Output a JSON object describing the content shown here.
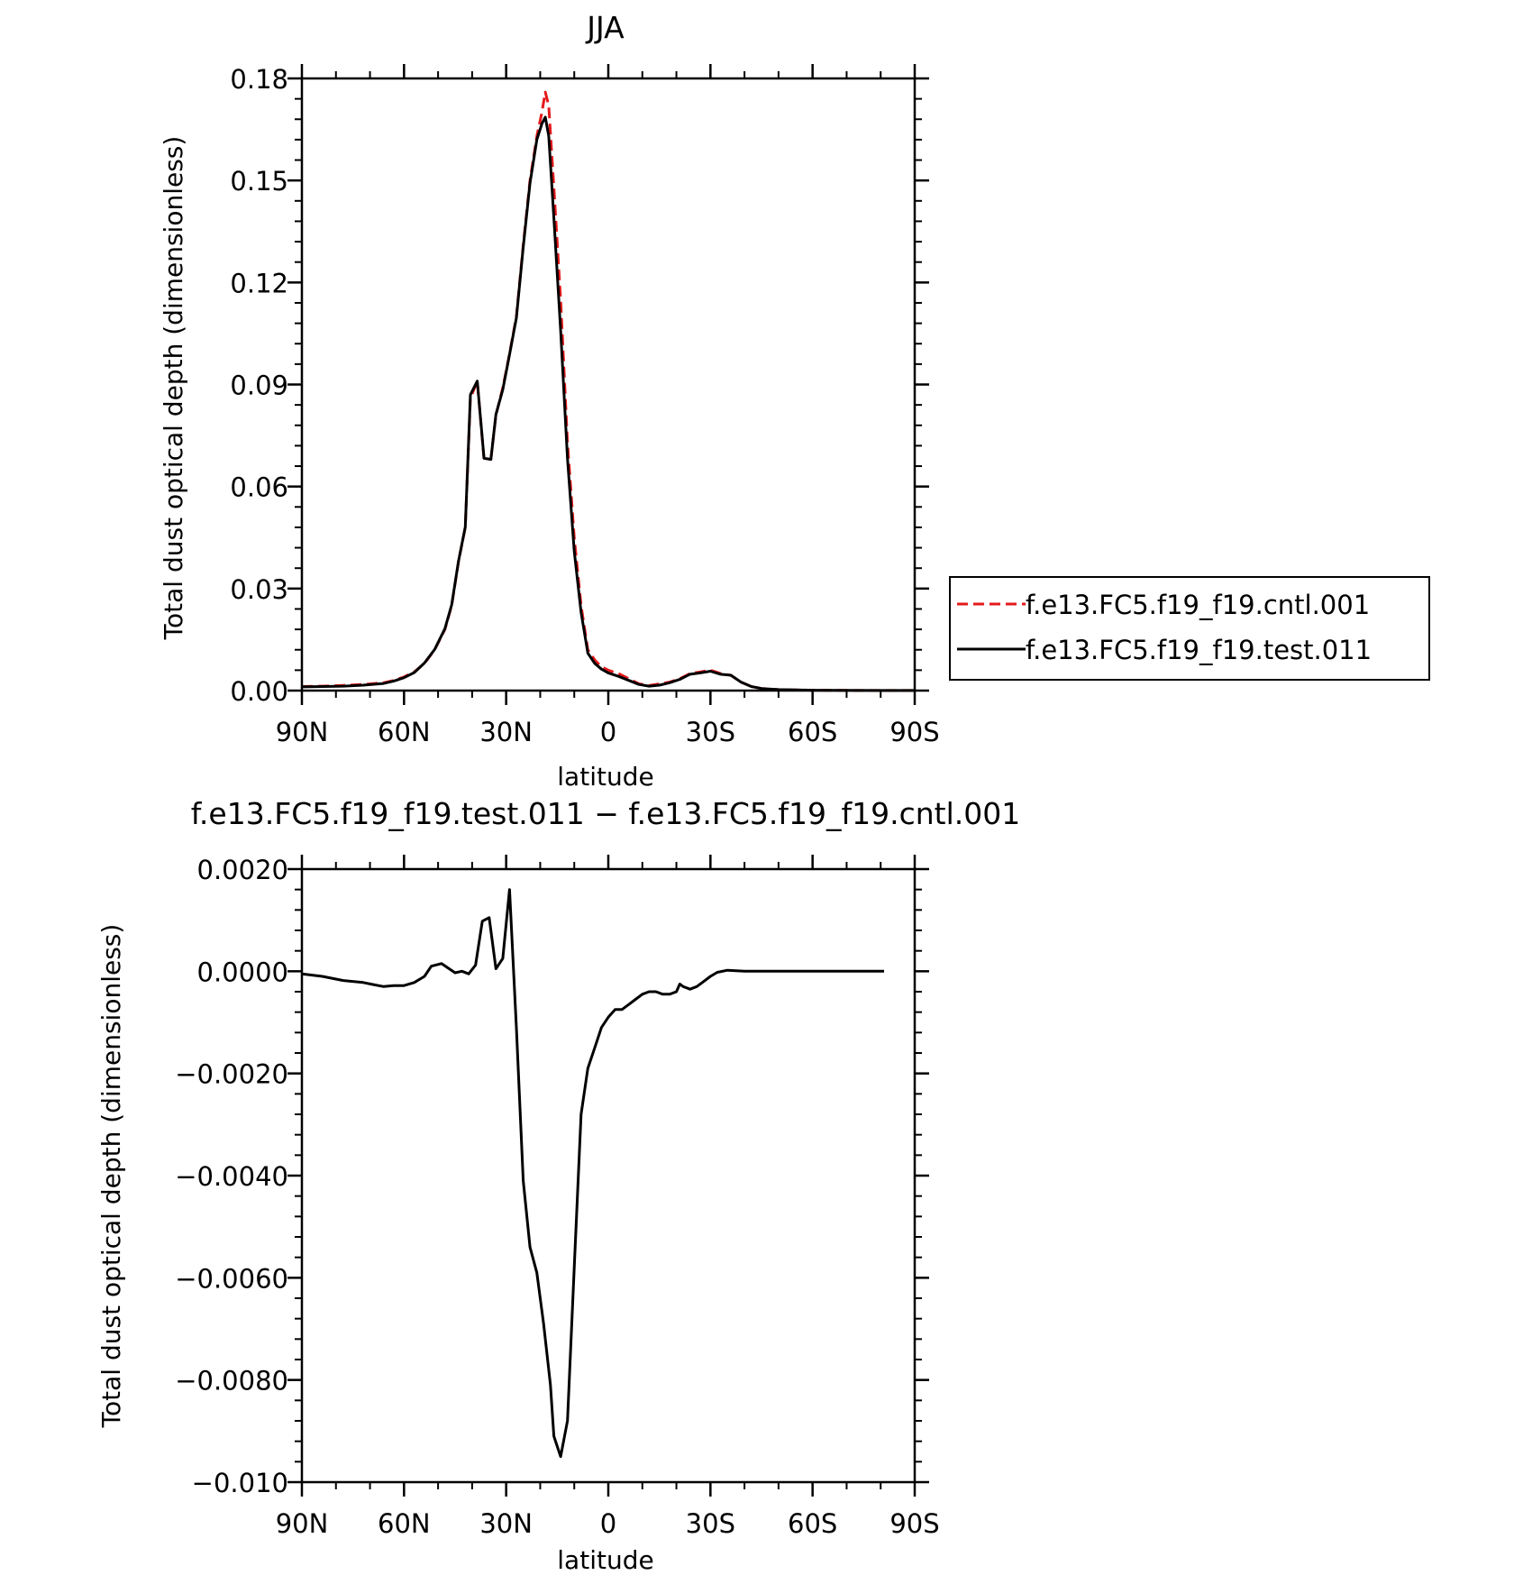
{
  "colors": {
    "cntl": "#e41a1c",
    "test": "#000000",
    "axis": "#000000"
  },
  "chart_data": [
    {
      "type": "line",
      "title": "JJA",
      "xlabel": "latitude",
      "ylabel": "Total dust optical depth (dimensionless)",
      "xlim": [
        90,
        -90
      ],
      "ylim": [
        0,
        0.18
      ],
      "xticks": [
        90,
        60,
        30,
        0,
        -30,
        -60,
        -90
      ],
      "xtick_labels": [
        "90N",
        "60N",
        "30N",
        "0",
        "30S",
        "60S",
        "90S"
      ],
      "yticks": [
        0,
        0.03,
        0.06,
        0.09,
        0.12,
        0.15,
        0.18
      ],
      "ytick_labels": [
        "0.00",
        "0.03",
        "0.06",
        "0.09",
        "0.12",
        "0.15",
        "0.18"
      ],
      "legend_position": "right",
      "series": [
        {
          "name": "f.e13.FC5.f19_f19.cntl.001",
          "style": "dashed",
          "x": [
            90,
            84,
            78,
            72,
            66,
            63,
            60,
            57,
            54,
            51,
            48,
            46,
            44,
            42,
            40.5,
            38.5,
            36.5,
            34.5,
            33,
            31,
            29,
            27,
            25,
            23,
            21,
            19.5,
            18.5,
            17.5,
            16,
            14,
            12,
            10,
            8,
            6,
            4,
            2,
            0,
            -3,
            -6,
            -9,
            -12,
            -15,
            -18,
            -21,
            -24,
            -27,
            -30,
            -33,
            -36,
            -39,
            -42,
            -45,
            -50,
            -60,
            -70,
            -80,
            -90
          ],
          "y": [
            0.0012,
            0.0013,
            0.0015,
            0.0018,
            0.0023,
            0.003,
            0.004,
            0.0055,
            0.008,
            0.012,
            0.018,
            0.025,
            0.038,
            0.048,
            0.086,
            0.091,
            0.068,
            0.068,
            0.081,
            0.089,
            0.099,
            0.11,
            0.131,
            0.15,
            0.163,
            0.17,
            0.176,
            0.172,
            0.148,
            0.115,
            0.073,
            0.045,
            0.025,
            0.012,
            0.009,
            0.007,
            0.006,
            0.005,
            0.0035,
            0.002,
            0.0015,
            0.002,
            0.0025,
            0.0035,
            0.005,
            0.0055,
            0.006,
            0.005,
            0.0045,
            0.0025,
            0.0012,
            0.0006,
            0.0003,
            0.0001,
            5e-05,
            3e-05,
            2e-05
          ]
        },
        {
          "name": "f.e13.FC5.f19_f19.test.011",
          "style": "solid",
          "x": [
            90,
            84,
            78,
            72,
            66,
            63,
            60,
            57,
            54,
            51,
            48,
            46,
            44,
            42,
            40.5,
            38.5,
            36.5,
            34.5,
            33,
            31,
            29,
            27,
            25,
            23,
            21,
            19.5,
            18.5,
            17.5,
            16,
            14,
            12,
            10,
            8,
            6,
            4,
            2,
            0,
            -3,
            -6,
            -9,
            -12,
            -15,
            -18,
            -21,
            -24,
            -27,
            -30,
            -33,
            -36,
            -39,
            -42,
            -45,
            -50,
            -60,
            -70,
            -80,
            -90
          ],
          "y": [
            0.0011,
            0.0012,
            0.0013,
            0.0016,
            0.0021,
            0.0028,
            0.0038,
            0.0053,
            0.0081,
            0.0121,
            0.0182,
            0.0252,
            0.0381,
            0.0481,
            0.087,
            0.091,
            0.0683,
            0.068,
            0.0812,
            0.0885,
            0.0988,
            0.1096,
            0.1304,
            0.1492,
            0.162,
            0.1667,
            0.1686,
            0.1631,
            0.139,
            0.106,
            0.0683,
            0.041,
            0.023,
            0.011,
            0.008,
            0.0063,
            0.0052,
            0.0042,
            0.003,
            0.0018,
            0.0013,
            0.0016,
            0.0023,
            0.0033,
            0.0048,
            0.0052,
            0.0057,
            0.0048,
            0.0045,
            0.0025,
            0.0012,
            0.0006,
            0.0003,
            0.0001,
            5e-05,
            3e-05,
            2e-05
          ]
        }
      ]
    },
    {
      "type": "line",
      "title": "f.e13.FC5.f19_f19.test.011 − f.e13.FC5.f19_f19.cntl.001",
      "xlabel": "latitude",
      "ylabel": "Total dust optical depth (dimensionless)",
      "xlim": [
        90,
        -90
      ],
      "ylim": [
        -0.01,
        0.002
      ],
      "xticks": [
        90,
        60,
        30,
        0,
        -30,
        -60,
        -90
      ],
      "xtick_labels": [
        "90N",
        "60N",
        "30N",
        "0",
        "30S",
        "60S",
        "90S"
      ],
      "yticks": [
        0.002,
        0,
        -0.002,
        -0.004,
        -0.006,
        -0.008,
        -0.01
      ],
      "ytick_labels": [
        "0.0020",
        "0.0000",
        "−0.0020",
        "−0.0040",
        "−0.0060",
        "−0.0080",
        "−0.010"
      ],
      "series": [
        {
          "style": "solid",
          "x": [
            90,
            84,
            78,
            72,
            69,
            66,
            63,
            60,
            57,
            54,
            52,
            49,
            47,
            45,
            43,
            41,
            39,
            37,
            35,
            33,
            31,
            29,
            27,
            25,
            23,
            21,
            19,
            17,
            16,
            14,
            12,
            10,
            8,
            6,
            4,
            2,
            0,
            -2,
            -4,
            -6,
            -8,
            -10,
            -12,
            -14,
            -16,
            -18,
            -20,
            -21,
            -22,
            -24,
            -26,
            -28,
            -30,
            -32,
            -35,
            -40,
            -45,
            -50,
            -55,
            -60,
            -65,
            -70,
            -75,
            -81
          ],
          "y": [
            -5e-05,
            -0.0001,
            -0.00018,
            -0.00022,
            -0.00026,
            -0.0003,
            -0.00028,
            -0.00028,
            -0.00022,
            -0.0001,
            0.0001,
            0.00015,
            6e-05,
            -3e-05,
            0.0,
            -5e-05,
            0.00012,
            0.00098,
            0.00105,
            5e-05,
            0.00025,
            0.0016,
            -0.0011,
            -0.0041,
            -0.0054,
            -0.0059,
            -0.0069,
            -0.0081,
            -0.0091,
            -0.0095,
            -0.0088,
            -0.0058,
            -0.0028,
            -0.0019,
            -0.0015,
            -0.0011,
            -0.0009,
            -0.00075,
            -0.00075,
            -0.00065,
            -0.00055,
            -0.00045,
            -0.0004,
            -0.0004,
            -0.00045,
            -0.00045,
            -0.0004,
            -0.00025,
            -0.0003,
            -0.00035,
            -0.0003,
            -0.0002,
            -0.0001,
            -2e-05,
            2e-05,
            0.0,
            0.0,
            0.0,
            0.0,
            0.0,
            0.0,
            0.0,
            0.0,
            0.0
          ]
        }
      ]
    }
  ]
}
